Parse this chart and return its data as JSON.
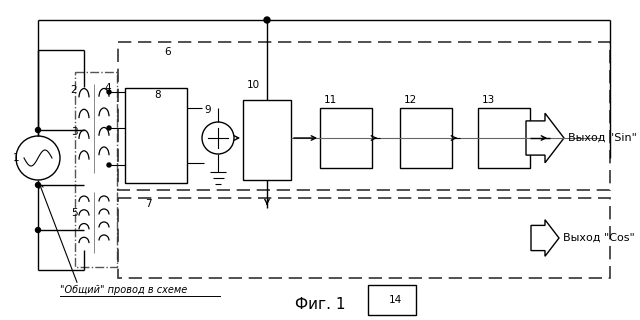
{
  "bg_color": "#ffffff",
  "line_color": "#000000",
  "fig_label": "Фиг. 1",
  "common_wire_label": "\"Общий\" провод в схеме",
  "output_sin_label": "Выход \"Sin\"",
  "output_cos_label": "Выход \"Cos\""
}
